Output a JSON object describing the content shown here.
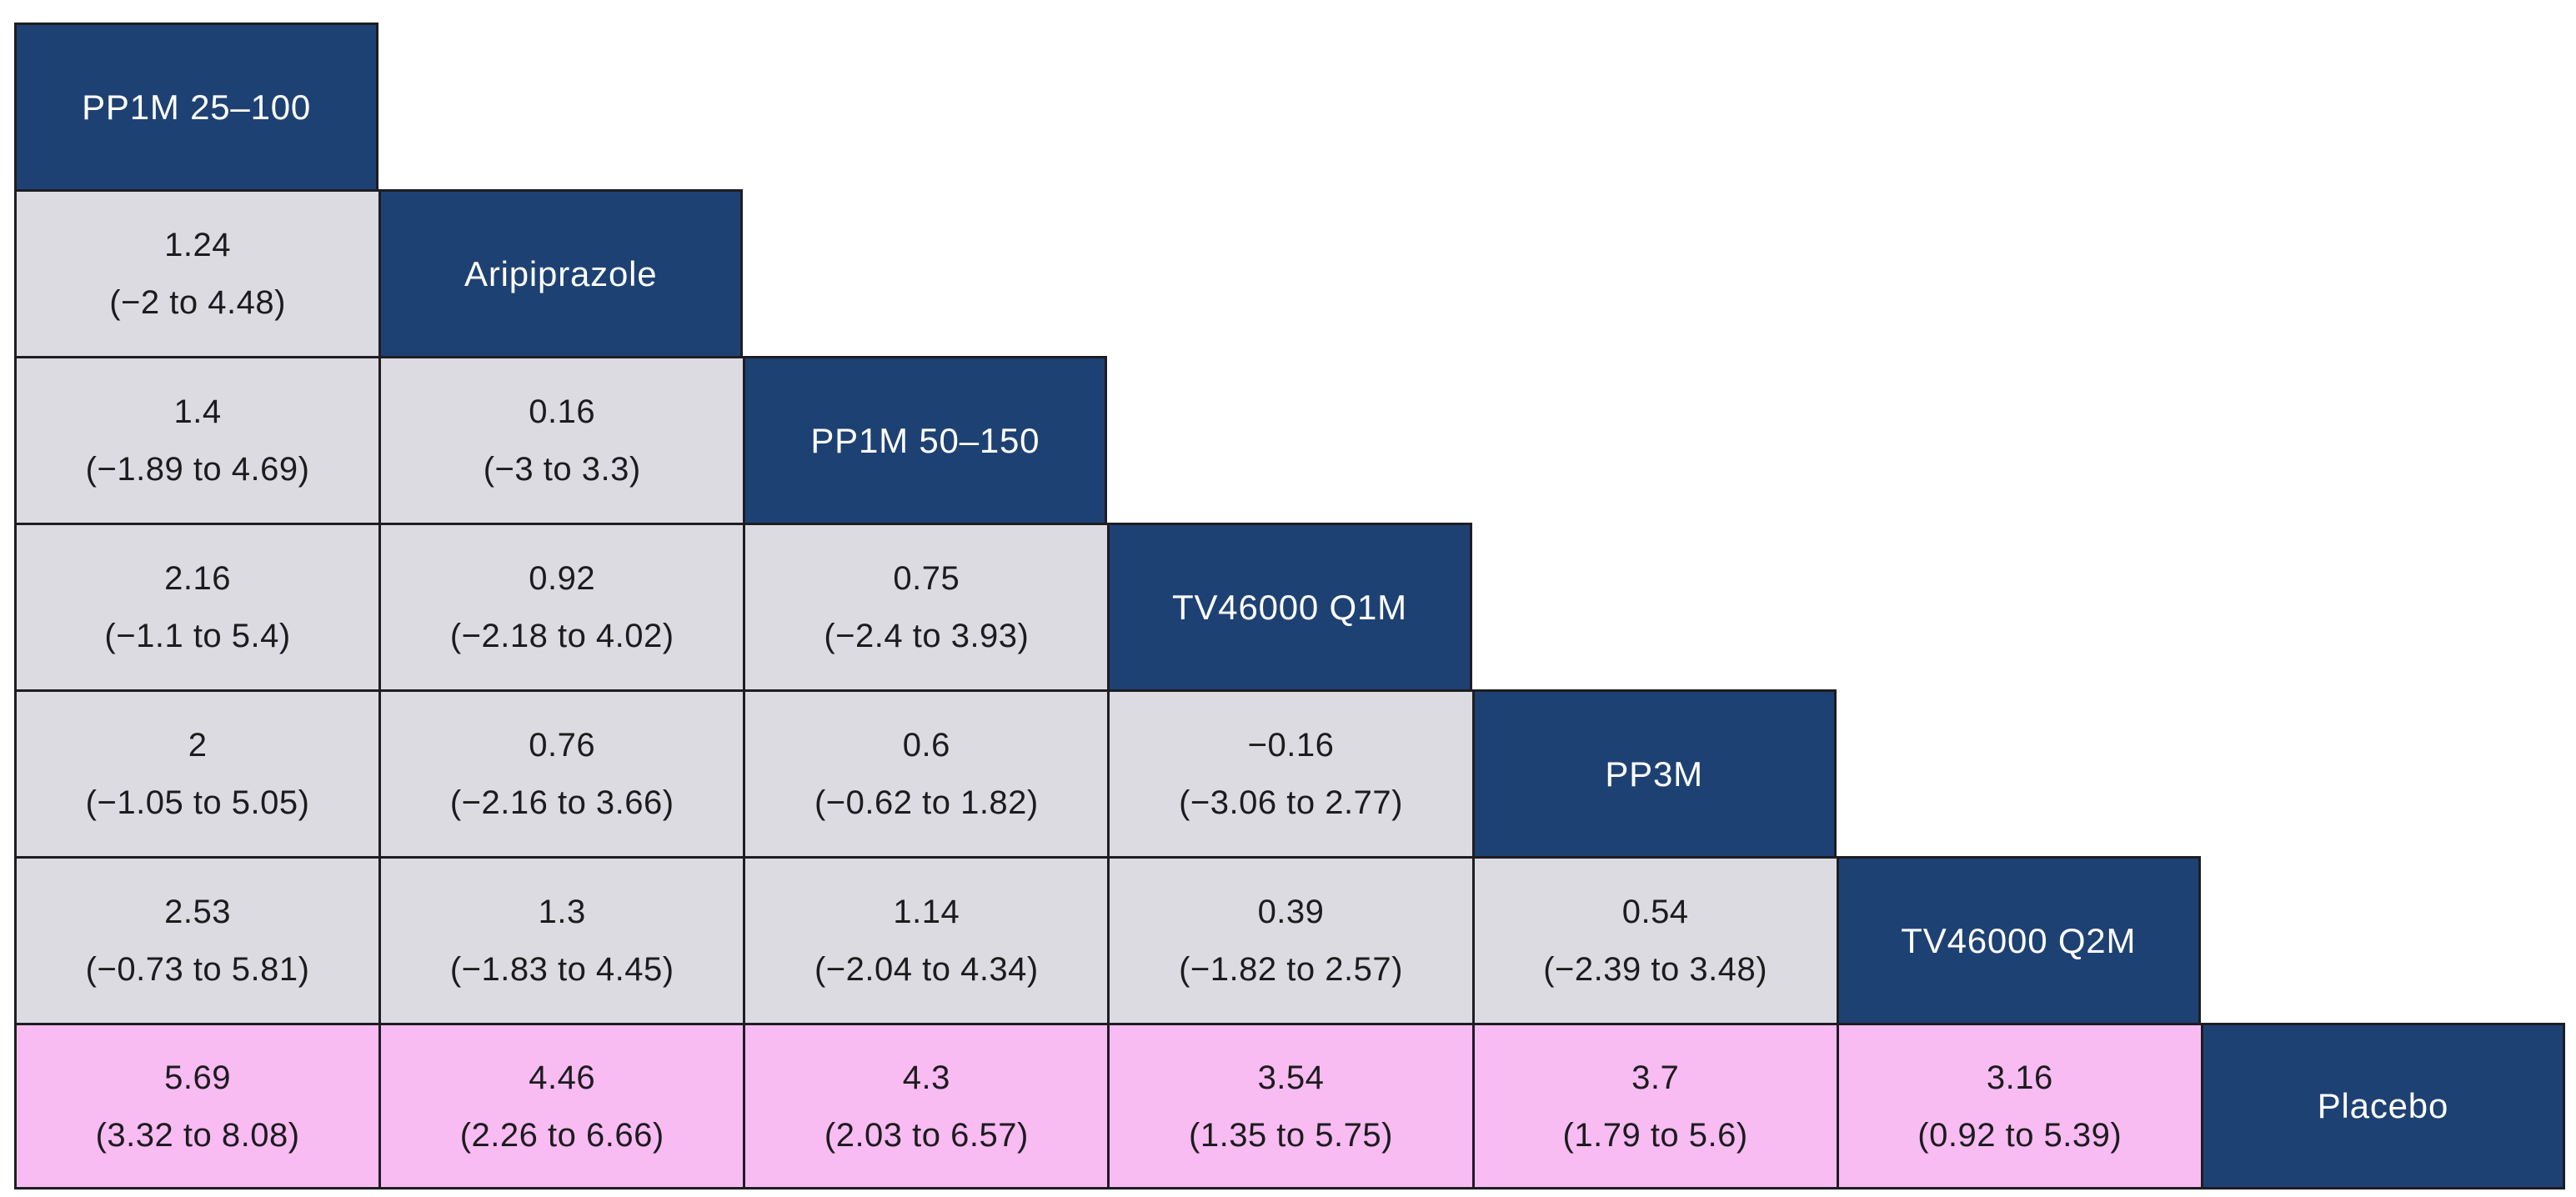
{
  "figure": {
    "kind": "network-meta-analysis league table",
    "colors": {
      "diagonal_bg": "#1e4173",
      "cell_bg": "#dcdbe1",
      "highlight_row_bg": "#f8bbf2",
      "grid_line": "#1d1d22",
      "diagonal_text": "#ffffff",
      "cell_text": "#1c1c1e"
    }
  },
  "table": {
    "rows": [
      {
        "label": "PP1M 25–100",
        "cells": []
      },
      {
        "label": "Aripiprazole",
        "cells": [
          {
            "estimate": "1.24",
            "ci": "(−2 to 4.48)"
          }
        ]
      },
      {
        "label": "PP1M 50–150",
        "cells": [
          {
            "estimate": "1.4",
            "ci": "(−1.89 to 4.69)"
          },
          {
            "estimate": "0.16",
            "ci": "(−3 to 3.3)"
          }
        ]
      },
      {
        "label": "TV46000 Q1M",
        "cells": [
          {
            "estimate": "2.16",
            "ci": "(−1.1 to 5.4)"
          },
          {
            "estimate": "0.92",
            "ci": "(−2.18 to 4.02)"
          },
          {
            "estimate": "0.75",
            "ci": "(−2.4 to 3.93)"
          }
        ]
      },
      {
        "label": "PP3M",
        "cells": [
          {
            "estimate": "2",
            "ci": "(−1.05 to 5.05)"
          },
          {
            "estimate": "0.76",
            "ci": "(−2.16 to 3.66)"
          },
          {
            "estimate": "0.6",
            "ci": "(−0.62 to 1.82)"
          },
          {
            "estimate": "−0.16",
            "ci": "(−3.06 to 2.77)"
          }
        ]
      },
      {
        "label": "TV46000 Q2M",
        "cells": [
          {
            "estimate": "2.53",
            "ci": "(−0.73 to 5.81)"
          },
          {
            "estimate": "1.3",
            "ci": "(−1.83 to 4.45)"
          },
          {
            "estimate": "1.14",
            "ci": "(−2.04 to 4.34)"
          },
          {
            "estimate": "0.39",
            "ci": "(−1.82 to 2.57)"
          },
          {
            "estimate": "0.54",
            "ci": "(−2.39 to 3.48)"
          }
        ]
      },
      {
        "label": "Placebo",
        "highlight": true,
        "cells": [
          {
            "estimate": "5.69",
            "ci": "(3.32 to 8.08)"
          },
          {
            "estimate": "4.46",
            "ci": "(2.26 to 6.66)"
          },
          {
            "estimate": "4.3",
            "ci": "(2.03 to 6.57)"
          },
          {
            "estimate": "3.54",
            "ci": "(1.35 to 5.75)"
          },
          {
            "estimate": "3.7",
            "ci": "(1.79 to 5.6)"
          },
          {
            "estimate": "3.16",
            "ci": "(0.92 to 5.39)"
          }
        ]
      }
    ]
  },
  "chart_data": {
    "type": "table",
    "subtype": "league-table-lower-triangle",
    "treatments": [
      "PP1M 25–100",
      "Aripiprazole",
      "PP1M 50–150",
      "TV46000 Q1M",
      "PP3M",
      "TV46000 Q2M",
      "Placebo"
    ],
    "highlighted_row": "Placebo",
    "comparisons": [
      {
        "row": "Aripiprazole",
        "col": "PP1M 25–100",
        "estimate": 1.24,
        "ci": [
          -2,
          4.48
        ]
      },
      {
        "row": "PP1M 50–150",
        "col": "PP1M 25–100",
        "estimate": 1.4,
        "ci": [
          -1.89,
          4.69
        ]
      },
      {
        "row": "PP1M 50–150",
        "col": "Aripiprazole",
        "estimate": 0.16,
        "ci": [
          -3,
          3.3
        ]
      },
      {
        "row": "TV46000 Q1M",
        "col": "PP1M 25–100",
        "estimate": 2.16,
        "ci": [
          -1.1,
          5.4
        ]
      },
      {
        "row": "TV46000 Q1M",
        "col": "Aripiprazole",
        "estimate": 0.92,
        "ci": [
          -2.18,
          4.02
        ]
      },
      {
        "row": "TV46000 Q1M",
        "col": "PP1M 50–150",
        "estimate": 0.75,
        "ci": [
          -2.4,
          3.93
        ]
      },
      {
        "row": "PP3M",
        "col": "PP1M 25–100",
        "estimate": 2,
        "ci": [
          -1.05,
          5.05
        ]
      },
      {
        "row": "PP3M",
        "col": "Aripiprazole",
        "estimate": 0.76,
        "ci": [
          -2.16,
          3.66
        ]
      },
      {
        "row": "PP3M",
        "col": "PP1M 50–150",
        "estimate": 0.6,
        "ci": [
          -0.62,
          1.82
        ]
      },
      {
        "row": "PP3M",
        "col": "TV46000 Q1M",
        "estimate": -0.16,
        "ci": [
          -3.06,
          2.77
        ]
      },
      {
        "row": "TV46000 Q2M",
        "col": "PP1M 25–100",
        "estimate": 2.53,
        "ci": [
          -0.73,
          5.81
        ]
      },
      {
        "row": "TV46000 Q2M",
        "col": "Aripiprazole",
        "estimate": 1.3,
        "ci": [
          -1.83,
          4.45
        ]
      },
      {
        "row": "TV46000 Q2M",
        "col": "PP1M 50–150",
        "estimate": 1.14,
        "ci": [
          -2.04,
          4.34
        ]
      },
      {
        "row": "TV46000 Q2M",
        "col": "TV46000 Q1M",
        "estimate": 0.39,
        "ci": [
          -1.82,
          2.57
        ]
      },
      {
        "row": "TV46000 Q2M",
        "col": "PP3M",
        "estimate": 0.54,
        "ci": [
          -2.39,
          3.48
        ]
      },
      {
        "row": "Placebo",
        "col": "PP1M 25–100",
        "estimate": 5.69,
        "ci": [
          3.32,
          8.08
        ]
      },
      {
        "row": "Placebo",
        "col": "Aripiprazole",
        "estimate": 4.46,
        "ci": [
          2.26,
          6.66
        ]
      },
      {
        "row": "Placebo",
        "col": "PP1M 50–150",
        "estimate": 4.3,
        "ci": [
          2.03,
          6.57
        ]
      },
      {
        "row": "Placebo",
        "col": "TV46000 Q1M",
        "estimate": 3.54,
        "ci": [
          1.35,
          5.75
        ]
      },
      {
        "row": "Placebo",
        "col": "PP3M",
        "estimate": 3.7,
        "ci": [
          1.79,
          5.6
        ]
      },
      {
        "row": "Placebo",
        "col": "TV46000 Q2M",
        "estimate": 3.16,
        "ci": [
          0.92,
          5.39
        ]
      }
    ]
  }
}
